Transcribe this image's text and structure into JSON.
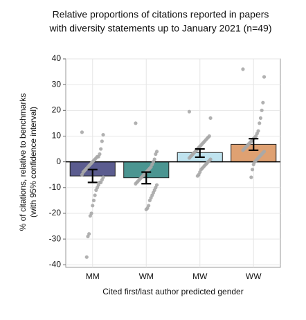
{
  "chart_data": {
    "type": "bar",
    "title": [
      "Relative proportions of citations reported in papers",
      "with diversity statements up to January 2021 (n=49)"
    ],
    "y_label": [
      "% of citations, relative to benchmarks",
      "(with 95% confidence interval)"
    ],
    "x_label": "Cited first/last author predicted gender",
    "categories": [
      "MM",
      "WM",
      "MW",
      "WW"
    ],
    "values": [
      -5.5,
      -6.2,
      3.6,
      6.8
    ],
    "ci_low": [
      -8,
      -8.5,
      1.8,
      4.5
    ],
    "ci_high": [
      -3,
      -4,
      5,
      9
    ],
    "colors": [
      "#5b5c8f",
      "#4b9591",
      "#bfe3ef",
      "#dfa172"
    ],
    "points": [
      [
        11.5,
        10.5,
        8,
        5,
        3,
        2,
        2,
        1.5,
        1,
        0.5,
        0,
        -0.5,
        -1,
        -1.5,
        -2,
        -2.5,
        -3,
        -3.5,
        -4,
        -5,
        -6,
        -7,
        -8,
        -8,
        -9,
        -10,
        -11,
        -13,
        -15,
        -17,
        -20,
        -21,
        -28,
        -29,
        -37
      ],
      [
        15,
        4,
        3,
        1,
        0,
        -1,
        -2,
        -2.5,
        -3,
        -3.5,
        -4,
        -4.5,
        -5,
        -5.5,
        -6,
        -6.5,
        -7,
        -7.5,
        -8,
        -8.5,
        -9,
        -10,
        -11,
        -12,
        -13,
        -14,
        -15,
        -17,
        -18,
        -18.5
      ],
      [
        19.5,
        17,
        10,
        9.5,
        9,
        8.5,
        8,
        7.5,
        7,
        6.5,
        6,
        5.5,
        5,
        4.5,
        4,
        3.5,
        3,
        2.5,
        2,
        1.5,
        1,
        0.5,
        0,
        -0.5,
        -1,
        -1.5,
        -2,
        -2.5,
        -3,
        -4,
        -5,
        -5.5
      ],
      [
        36,
        33,
        23,
        20,
        17,
        15,
        12,
        11,
        10,
        9.5,
        9,
        8.5,
        8,
        7.5,
        7,
        6.5,
        6,
        5.5,
        5,
        4.5,
        4,
        3.5,
        3,
        2.5,
        2,
        1.5,
        1,
        0.5,
        0,
        -1,
        -3,
        -6
      ]
    ],
    "point_color": "#a8a8a8",
    "ylim": [
      -41,
      40
    ],
    "yticks": [
      -40,
      -30,
      -20,
      -10,
      0,
      10,
      20,
      30,
      40
    ],
    "grid": true
  }
}
